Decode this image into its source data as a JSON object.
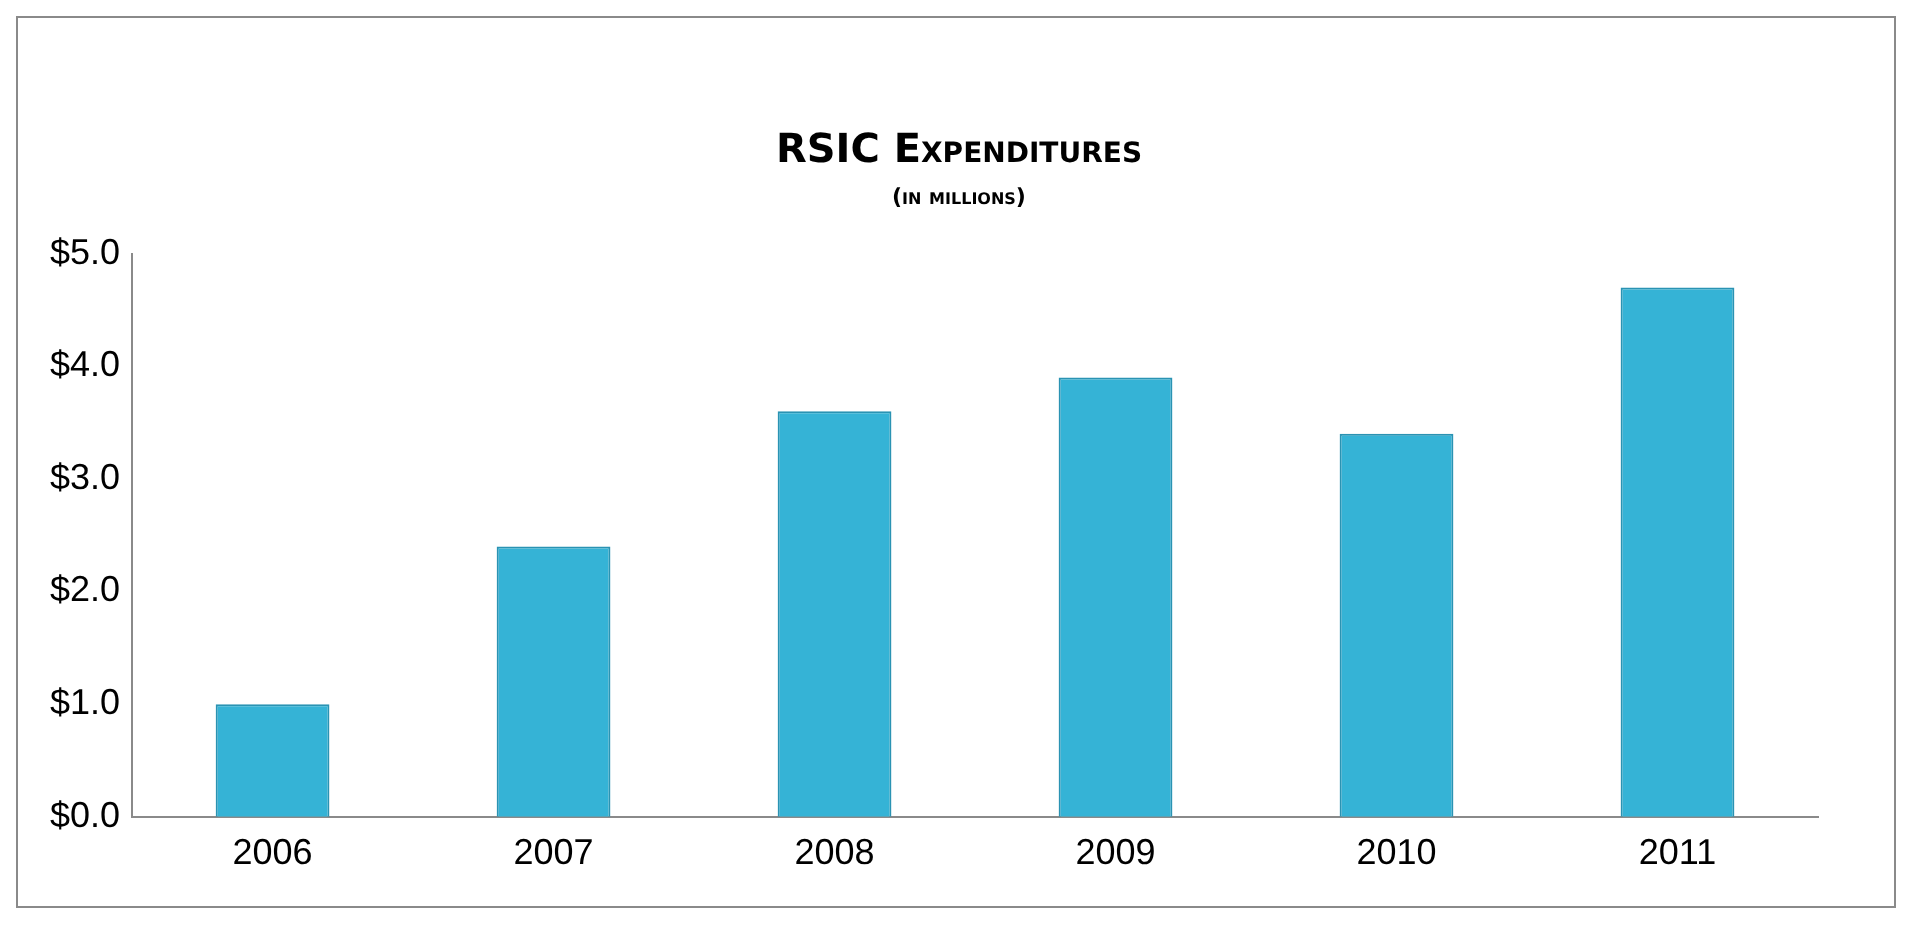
{
  "chart_data": {
    "type": "bar",
    "title": "RSIC Expenditures",
    "subtitle": "(in millions)",
    "categories": [
      "2006",
      "2007",
      "2008",
      "2009",
      "2010",
      "2011"
    ],
    "values": [
      1.0,
      2.4,
      3.6,
      3.9,
      3.4,
      4.7
    ],
    "color": "#35b3d6",
    "ylim": [
      0,
      5
    ],
    "yticks": [
      {
        "value": 0,
        "label": "$0.0"
      },
      {
        "value": 1,
        "label": "$1.0"
      },
      {
        "value": 2,
        "label": "$2.0"
      },
      {
        "value": 3,
        "label": "$3.0"
      },
      {
        "value": 4,
        "label": "$4.0"
      },
      {
        "value": 5,
        "label": "$5.0"
      }
    ],
    "grid": false,
    "legend": false
  }
}
